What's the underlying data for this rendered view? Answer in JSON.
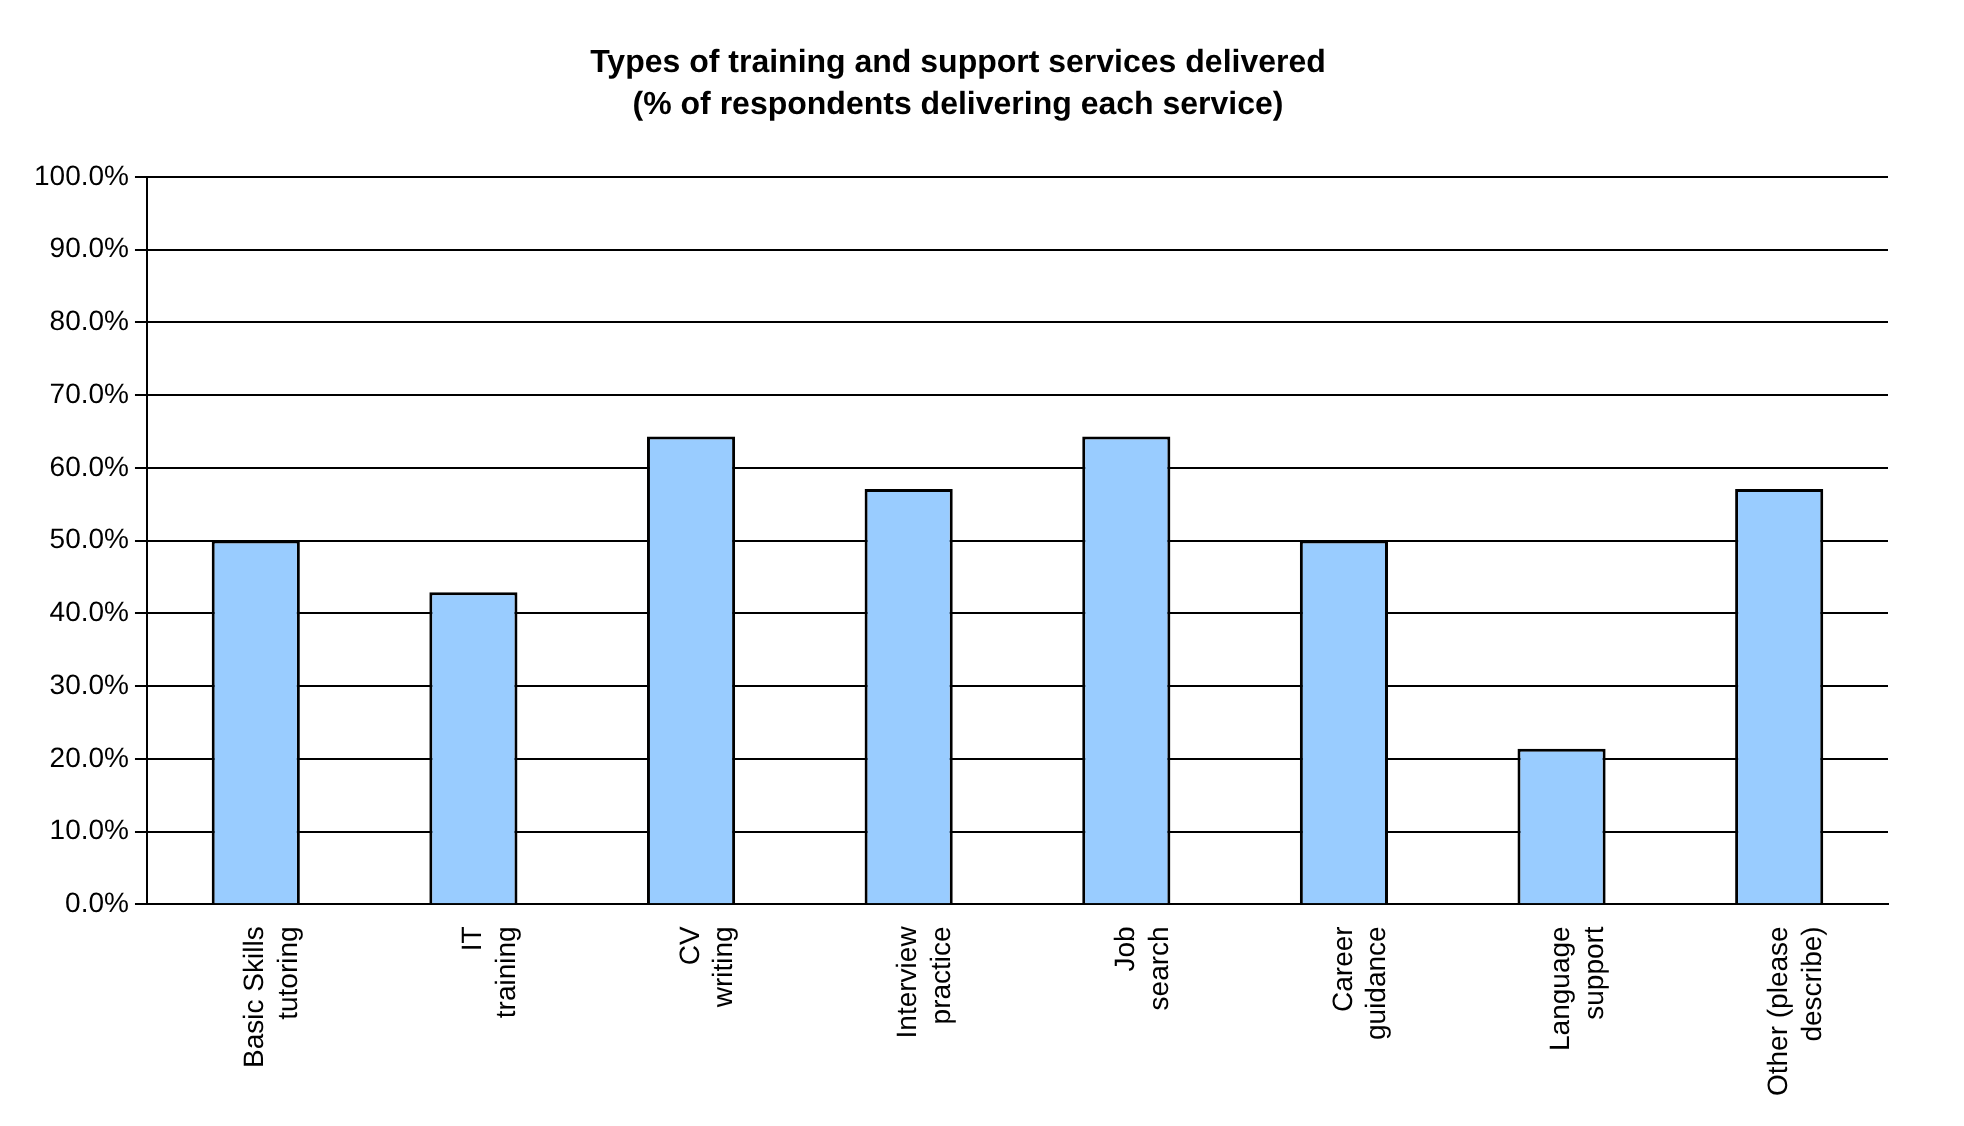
{
  "chart_data": {
    "type": "bar",
    "title": "Types of training and support services delivered",
    "subtitle": "(% of respondents delivering each service)",
    "categories": [
      "Basic Skills tutoring",
      "IT training",
      "CV writing",
      "Interview practice",
      "Job search",
      "Career guidance",
      "Language support",
      "Other (please describe)"
    ],
    "values": [
      50,
      42.9,
      64.3,
      57.1,
      64.3,
      50,
      21.4,
      57.1
    ],
    "color": "#99ccff",
    "ylim": [
      0,
      100
    ],
    "yticks": [
      {
        "value": 0,
        "label": "0.0%"
      },
      {
        "value": 10,
        "label": "10.0%"
      },
      {
        "value": 20,
        "label": "20.0%"
      },
      {
        "value": 30,
        "label": "30.0%"
      },
      {
        "value": 40,
        "label": "40.0%"
      },
      {
        "value": 50,
        "label": "50.0%"
      },
      {
        "value": 60,
        "label": "60.0%"
      },
      {
        "value": 70,
        "label": "70.0%"
      },
      {
        "value": 80,
        "label": "80.0%"
      },
      {
        "value": 90,
        "label": "90.0%"
      },
      {
        "value": 100,
        "label": "100.0%"
      }
    ],
    "grid": "y",
    "legend": false
  }
}
